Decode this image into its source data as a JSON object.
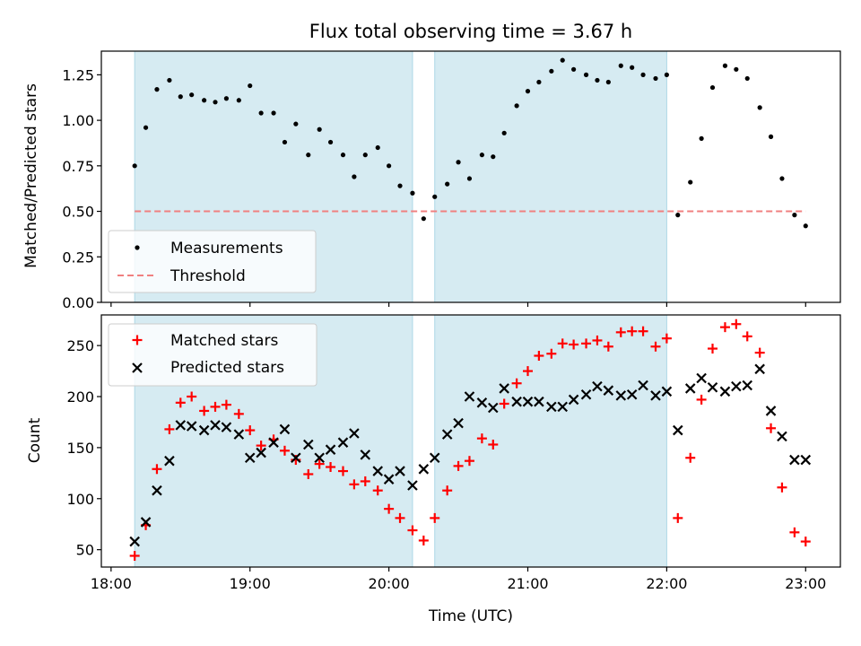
{
  "title": "Flux total observing time = 3.67 h",
  "colors": {
    "shade": "#add8e6",
    "measure": "#000000",
    "threshold": "#f08080",
    "matched": "#ff0000",
    "predicted": "#000000"
  },
  "chart_data": [
    {
      "type": "scatter",
      "panel": "top",
      "title": "Flux total observing time = 3.67 h",
      "xlabel": "",
      "ylabel": "Matched/Predicted stars",
      "x_unit": "hours (UTC)",
      "xlim": [
        17.93,
        23.25
      ],
      "ylim": [
        0.0,
        1.38
      ],
      "yticks": [
        0.0,
        0.25,
        0.5,
        0.75,
        1.0,
        1.25
      ],
      "ytick_labels": [
        "0.00",
        "0.25",
        "0.50",
        "0.75",
        "1.00",
        "1.25"
      ],
      "legend": "lower-left",
      "shaded_intervals": [
        [
          18.17,
          20.17
        ],
        [
          20.33,
          22.0
        ]
      ],
      "series": [
        {
          "name": "Measurements",
          "marker": "dot",
          "x": [
            18.17,
            18.25,
            18.33,
            18.42,
            18.5,
            18.58,
            18.67,
            18.75,
            18.83,
            18.92,
            19.0,
            19.08,
            19.17,
            19.25,
            19.33,
            19.42,
            19.5,
            19.58,
            19.67,
            19.75,
            19.83,
            19.92,
            20.0,
            20.08,
            20.17,
            20.25,
            20.33,
            20.42,
            20.5,
            20.58,
            20.67,
            20.75,
            20.83,
            20.92,
            21.0,
            21.08,
            21.17,
            21.25,
            21.33,
            21.42,
            21.5,
            21.58,
            21.67,
            21.75,
            21.83,
            21.92,
            22.0,
            22.08,
            22.17,
            22.25,
            22.33,
            22.42,
            22.5,
            22.58,
            22.67,
            22.75,
            22.83,
            22.92,
            23.0
          ],
          "y": [
            0.75,
            0.96,
            1.17,
            1.22,
            1.13,
            1.14,
            1.11,
            1.1,
            1.12,
            1.11,
            1.19,
            1.04,
            1.04,
            0.88,
            0.98,
            0.81,
            0.95,
            0.88,
            0.81,
            0.69,
            0.81,
            0.85,
            0.75,
            0.64,
            0.6,
            0.46,
            0.58,
            0.65,
            0.77,
            0.68,
            0.81,
            0.8,
            0.93,
            1.08,
            1.16,
            1.21,
            1.27,
            1.33,
            1.28,
            1.25,
            1.22,
            1.21,
            1.3,
            1.29,
            1.25,
            1.23,
            1.25,
            0.48,
            0.66,
            0.9,
            1.18,
            1.3,
            1.28,
            1.23,
            1.07,
            0.91,
            0.68,
            0.48,
            0.42
          ]
        },
        {
          "name": "Threshold",
          "marker": "dashed-line",
          "x": [
            18.17,
            23.0
          ],
          "y": [
            0.5,
            0.5
          ]
        }
      ]
    },
    {
      "type": "scatter",
      "panel": "bottom",
      "xlabel": "Time (UTC)",
      "ylabel": "Count",
      "x_unit": "hours (UTC)",
      "xlim": [
        17.93,
        23.25
      ],
      "ylim": [
        33,
        280
      ],
      "xticks": [
        18,
        19,
        20,
        21,
        22,
        23
      ],
      "xtick_labels": [
        "18:00",
        "19:00",
        "20:00",
        "21:00",
        "22:00",
        "23:00"
      ],
      "yticks": [
        50,
        100,
        150,
        200,
        250
      ],
      "ytick_labels": [
        "50",
        "100",
        "150",
        "200",
        "250"
      ],
      "legend": "top-left",
      "shaded_intervals": [
        [
          18.17,
          20.17
        ],
        [
          20.33,
          22.0
        ]
      ],
      "series": [
        {
          "name": "Matched stars",
          "marker": "plus",
          "x": [
            18.17,
            18.25,
            18.33,
            18.42,
            18.5,
            18.58,
            18.67,
            18.75,
            18.83,
            18.92,
            19.0,
            19.08,
            19.17,
            19.25,
            19.33,
            19.42,
            19.5,
            19.58,
            19.67,
            19.75,
            19.83,
            19.92,
            20.0,
            20.08,
            20.17,
            20.25,
            20.33,
            20.42,
            20.5,
            20.58,
            20.67,
            20.75,
            20.83,
            20.92,
            21.0,
            21.08,
            21.17,
            21.25,
            21.33,
            21.42,
            21.5,
            21.58,
            21.67,
            21.75,
            21.83,
            21.92,
            22.0,
            22.08,
            22.17,
            22.25,
            22.33,
            22.42,
            22.5,
            22.58,
            22.67,
            22.75,
            22.83,
            22.92,
            23.0
          ],
          "y": [
            44,
            74,
            129,
            168,
            194,
            200,
            186,
            190,
            192,
            183,
            167,
            152,
            158,
            147,
            138,
            124,
            134,
            131,
            127,
            114,
            117,
            108,
            90,
            81,
            69,
            59,
            81,
            108,
            132,
            137,
            159,
            153,
            193,
            213,
            225,
            240,
            242,
            252,
            251,
            252,
            255,
            249,
            263,
            264,
            264,
            249,
            257,
            81,
            140,
            197,
            247,
            268,
            271,
            259,
            243,
            169,
            111,
            67,
            58
          ]
        },
        {
          "name": "Predicted stars",
          "marker": "x",
          "x": [
            18.17,
            18.25,
            18.33,
            18.42,
            18.5,
            18.58,
            18.67,
            18.75,
            18.83,
            18.92,
            19.0,
            19.08,
            19.17,
            19.25,
            19.33,
            19.42,
            19.5,
            19.58,
            19.67,
            19.75,
            19.83,
            19.92,
            20.0,
            20.08,
            20.17,
            20.25,
            20.33,
            20.42,
            20.5,
            20.58,
            20.67,
            20.75,
            20.83,
            20.92,
            21.0,
            21.08,
            21.17,
            21.25,
            21.33,
            21.42,
            21.5,
            21.58,
            21.67,
            21.75,
            21.83,
            21.92,
            22.0,
            22.08,
            22.17,
            22.25,
            22.33,
            22.42,
            22.5,
            22.58,
            22.67,
            22.75,
            22.83,
            22.92,
            23.0
          ],
          "y": [
            58,
            77,
            108,
            137,
            172,
            171,
            167,
            172,
            170,
            163,
            140,
            145,
            155,
            168,
            140,
            153,
            140,
            148,
            155,
            164,
            143,
            127,
            119,
            127,
            113,
            129,
            140,
            163,
            174,
            200,
            194,
            189,
            208,
            195,
            195,
            195,
            190,
            190,
            197,
            202,
            210,
            206,
            201,
            202,
            211,
            201,
            205,
            167,
            208,
            218,
            209,
            205,
            210,
            211,
            227,
            186,
            161,
            138,
            138
          ]
        }
      ]
    }
  ]
}
